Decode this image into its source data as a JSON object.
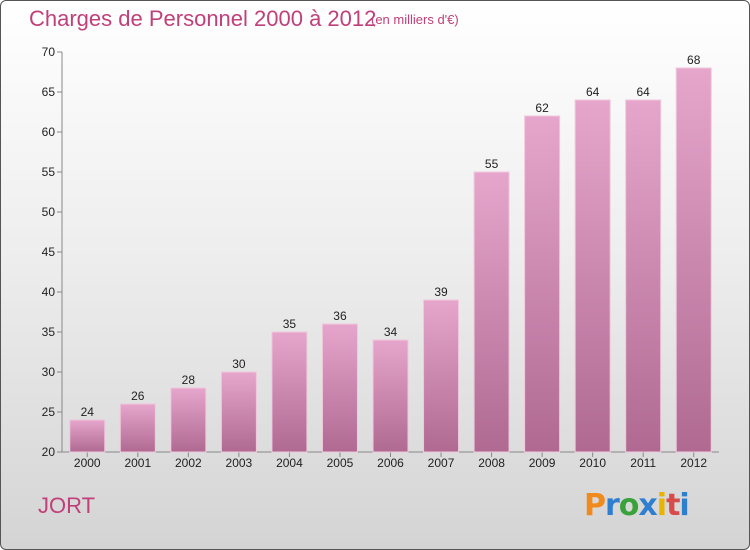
{
  "chart_data": {
    "type": "bar",
    "title": "Charges de Personnel 2000 à 2012",
    "subtitle": "(en milliers d'€)",
    "categories": [
      "2000",
      "2001",
      "2002",
      "2003",
      "2004",
      "2005",
      "2006",
      "2007",
      "2008",
      "2009",
      "2010",
      "2011",
      "2012"
    ],
    "values": [
      24,
      26,
      28,
      30,
      35,
      36,
      34,
      39,
      55,
      62,
      64,
      64,
      68
    ],
    "ylim": [
      20,
      70
    ],
    "yticks": [
      20,
      25,
      30,
      35,
      40,
      45,
      50,
      55,
      60,
      65,
      70
    ],
    "xlabel": "",
    "ylabel": "",
    "grid": false,
    "bar_color": "#d48ab4"
  },
  "footer": {
    "place": "JORT",
    "logo_letters": [
      "P",
      "r",
      "o",
      "x",
      "i",
      "t",
      "i"
    ],
    "logo_colors": [
      "#f08a1c",
      "#2f7fd0",
      "#3aa23a",
      "#2f7fd0",
      "#e8b400",
      "#d94a4a",
      "#2f7fd0"
    ]
  }
}
